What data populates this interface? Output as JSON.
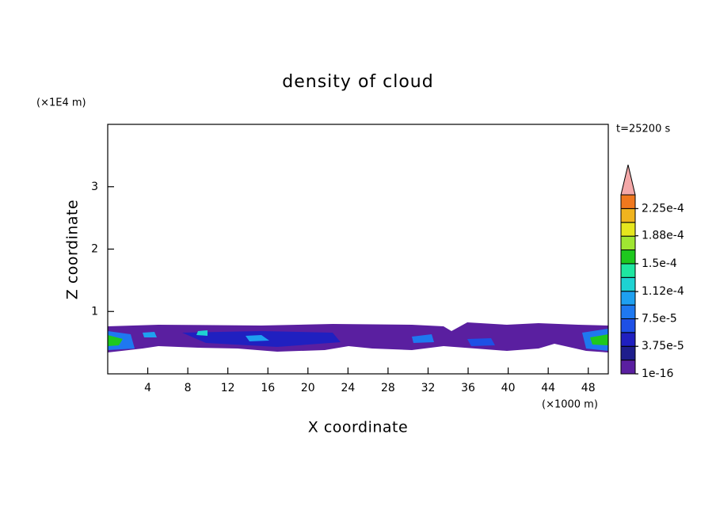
{
  "chart_data": {
    "type": "contour",
    "title": "density of cloud",
    "x_label": "X coordinate",
    "y_label": "Z coordinate",
    "x_unit": "(×1000 m)",
    "y_unit": "(×1E4 m)",
    "time_label": "t=25200 s",
    "xlim": [
      0,
      50
    ],
    "ylim": [
      0,
      4
    ],
    "xticks": [
      4,
      8,
      12,
      16,
      20,
      24,
      28,
      32,
      36,
      40,
      44,
      48
    ],
    "yticks": [
      1,
      2,
      3
    ],
    "colorbar": {
      "levels": [
        1e-16,
        1.875e-05,
        3.75e-05,
        5.625e-05,
        7.5e-05,
        9.375e-05,
        0.0001125,
        0.00013125,
        0.00015,
        0.00016875,
        0.0001875,
        0.00020625,
        0.000225,
        0.00024375
      ],
      "colors": [
        "#5a1fa0",
        "#1e1e8c",
        "#2020c0",
        "#1e50e6",
        "#1e78f0",
        "#1ea0f0",
        "#1ed2d2",
        "#1ee6a0",
        "#1ec81e",
        "#a0e632",
        "#e6e61e",
        "#f0b41e",
        "#f0781e"
      ],
      "over_color": "#f4a8a8",
      "ticks": [
        {
          "value": 1e-16,
          "label": "1e-16"
        },
        {
          "value": 3.75e-05,
          "label": "3.75e-5"
        },
        {
          "value": 7.5e-05,
          "label": "7.5e-5"
        },
        {
          "value": 0.000112,
          "label": "1.12e-4"
        },
        {
          "value": 0.00015,
          "label": "1.5e-4"
        },
        {
          "value": 0.000188,
          "label": "1.88e-4"
        },
        {
          "value": 0.000225,
          "label": "2.25e-4"
        }
      ]
    }
  }
}
